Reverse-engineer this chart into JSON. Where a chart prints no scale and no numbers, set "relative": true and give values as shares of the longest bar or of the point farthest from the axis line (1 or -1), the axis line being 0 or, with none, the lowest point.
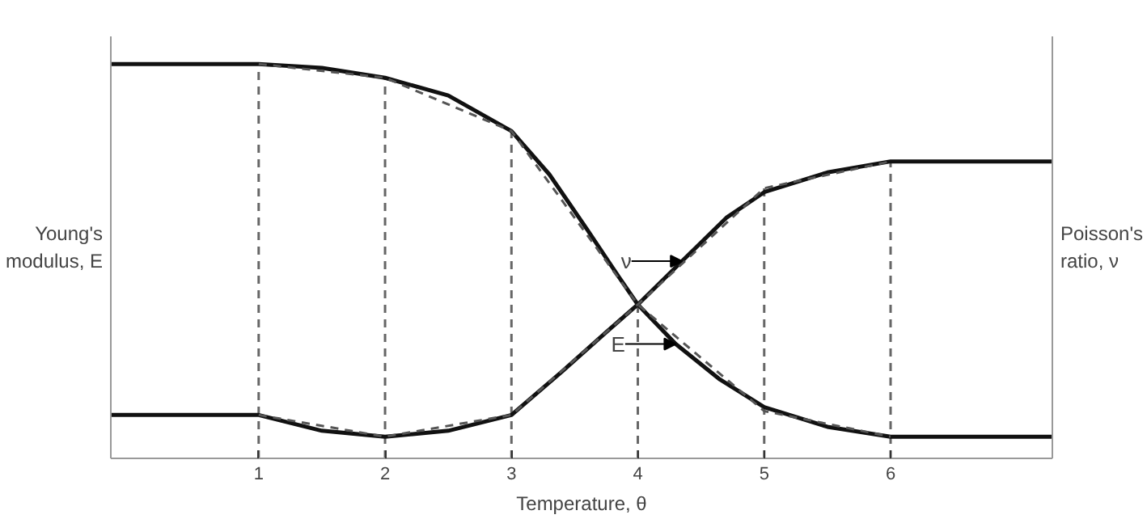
{
  "chart_data": {
    "type": "line",
    "relative": true,
    "xlabel": "Temperature, θ",
    "ylabel": "Young's\nmodulus, E",
    "y2label": "Poisson's\nratio, ν",
    "xlim": [
      -0.17,
      7.28
    ],
    "xticks": [
      1,
      2,
      3,
      4,
      5,
      6
    ],
    "grid": false,
    "marker": "none",
    "series": [
      {
        "color": "#111111",
        "line_style": "solid",
        "x": [
          -0.17,
          1,
          1.5,
          2,
          2.5,
          3,
          3.3,
          3.6,
          3.85,
          4,
          4.3,
          4.65,
          5,
          5.5,
          6,
          7.28
        ],
        "values": [
          1,
          1,
          0.99,
          0.965,
          0.92,
          0.83,
          0.72,
          0.58,
          0.46,
          0.39,
          0.29,
          0.2,
          0.13,
          0.08,
          0.055,
          0.055
        ]
      },
      {
        "color": "#111111",
        "line_style": "solid",
        "x": [
          -0.17,
          1,
          1.5,
          2,
          2.5,
          3,
          3.4,
          3.75,
          4,
          4.35,
          4.7,
          5,
          5.5,
          6,
          7.28
        ],
        "values": [
          0.11,
          0.11,
          0.07,
          0.055,
          0.07,
          0.11,
          0.22,
          0.32,
          0.39,
          0.5,
          0.61,
          0.675,
          0.725,
          0.753,
          0.753
        ]
      },
      {
        "color": "#555555",
        "line_style": "dashed",
        "x": [
          1,
          2,
          3,
          4,
          5,
          6
        ],
        "values": [
          1,
          0.965,
          0.83,
          0.39,
          0.12,
          0.055
        ]
      },
      {
        "color": "#555555",
        "line_style": "dashed",
        "x": [
          1,
          2,
          3,
          4,
          5,
          6
        ],
        "values": [
          0.11,
          0.055,
          0.11,
          0.39,
          0.685,
          0.753
        ]
      }
    ],
    "ref_lines": [
      {
        "axis": "x",
        "value": 1,
        "color": "#666666",
        "line_style": "dashed"
      },
      {
        "axis": "x",
        "value": 2,
        "color": "#666666",
        "line_style": "dashed"
      },
      {
        "axis": "x",
        "value": 3,
        "color": "#666666",
        "line_style": "dashed"
      },
      {
        "axis": "x",
        "value": 4,
        "color": "#666666",
        "line_style": "dashed"
      },
      {
        "axis": "x",
        "value": 5,
        "color": "#666666",
        "line_style": "dashed"
      },
      {
        "axis": "x",
        "value": 6,
        "color": "#666666",
        "line_style": "dashed"
      }
    ],
    "annotations": [
      {
        "text": "ν",
        "x": 4.35,
        "y": 0.5
      },
      {
        "text": "E",
        "x": 4.3,
        "y": 0.29
      }
    ]
  }
}
